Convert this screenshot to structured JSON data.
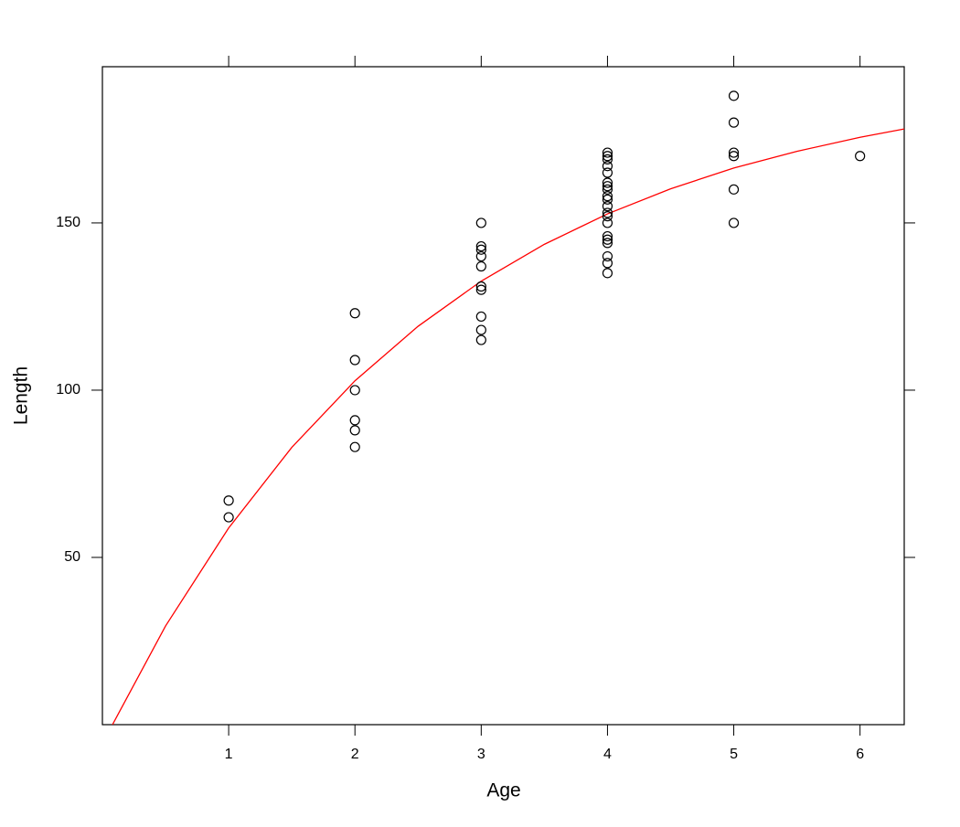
{
  "chart_data": {
    "type": "scatter",
    "x_label": "Age",
    "y_label": "Length",
    "x": [
      1,
      1,
      2,
      2,
      2,
      2,
      2,
      2,
      3,
      3,
      3,
      3,
      3,
      3,
      3,
      3,
      3,
      3,
      4,
      4,
      4,
      4,
      4,
      4,
      4,
      4,
      4,
      4,
      4,
      4,
      4,
      4,
      4,
      4,
      4,
      4,
      4,
      4,
      5,
      5,
      5,
      5,
      5,
      5,
      6
    ],
    "values": [
      67,
      62,
      123,
      109,
      100,
      91,
      88,
      83,
      150,
      143,
      142,
      140,
      137,
      131,
      130,
      122,
      118,
      115,
      171,
      170,
      169,
      167,
      165,
      162,
      161,
      160,
      158,
      157,
      155,
      153,
      152,
      150,
      146,
      145,
      144,
      140,
      138,
      135,
      188,
      180,
      171,
      170,
      160,
      150,
      170
    ],
    "color": "#000000",
    "fit": {
      "x": [
        0.08,
        0.5,
        1,
        1.5,
        2,
        2.5,
        3,
        3.5,
        4,
        4.5,
        5,
        5.5,
        6,
        6.35
      ],
      "values": [
        0,
        29.5,
        58.8,
        82.9,
        102.8,
        119.1,
        132.6,
        143.6,
        152.7,
        160.2,
        166.4,
        171.4,
        175.6,
        178.1
      ],
      "color": "#ff0000"
    },
    "xlim": [
      0,
      6.35
    ],
    "ylim": [
      0,
      196.7
    ],
    "xticks": [
      1,
      2,
      3,
      4,
      5,
      6
    ],
    "yticks": [
      50,
      100,
      150
    ]
  }
}
